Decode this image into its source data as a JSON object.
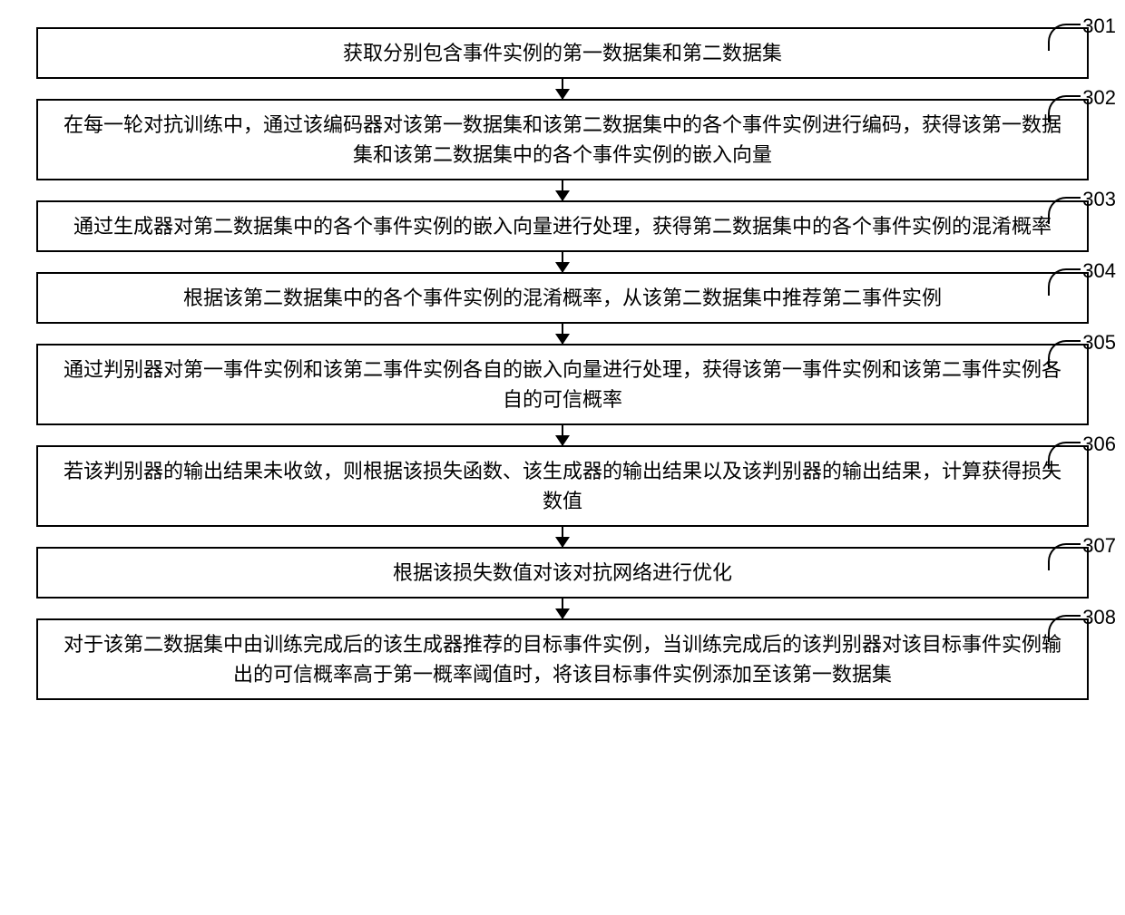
{
  "flowchart": {
    "type": "flowchart",
    "direction": "vertical",
    "background_color": "#ffffff",
    "box_border_color": "#000000",
    "box_border_width": 2,
    "arrow_color": "#000000",
    "font_family": "SimSun",
    "font_size": 22,
    "text_color": "#000000",
    "label_font_family": "Arial",
    "label_font_size": 22,
    "steps": [
      {
        "id": "301",
        "text": "获取分别包含事件实例的第一数据集和第二数据集"
      },
      {
        "id": "302",
        "text": "在每一轮对抗训练中，通过该编码器对该第一数据集和该第二数据集中的各个事件实例进行编码，获得该第一数据集和该第二数据集中的各个事件实例的嵌入向量"
      },
      {
        "id": "303",
        "text": "通过生成器对第二数据集中的各个事件实例的嵌入向量进行处理，获得第二数据集中的各个事件实例的混淆概率"
      },
      {
        "id": "304",
        "text": "根据该第二数据集中的各个事件实例的混淆概率，从该第二数据集中推荐第二事件实例"
      },
      {
        "id": "305",
        "text": "通过判别器对第一事件实例和该第二事件实例各自的嵌入向量进行处理，获得该第一事件实例和该第二事件实例各自的可信概率"
      },
      {
        "id": "306",
        "text": "若该判别器的输出结果未收敛，则根据该损失函数、该生成器的输出结果以及该判别器的输出结果，计算获得损失数值"
      },
      {
        "id": "307",
        "text": "根据该损失数值对该对抗网络进行优化"
      },
      {
        "id": "308",
        "text": "对于该第二数据集中由训练完成后的该生成器推荐的目标事件实例，当训练完成后的该判别器对该目标事件实例输出的可信概率高于第一概率阈值时，将该目标事件实例添加至该第一数据集"
      }
    ]
  }
}
